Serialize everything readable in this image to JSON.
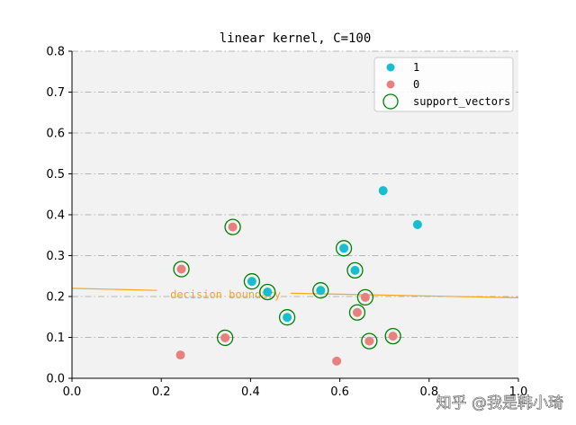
{
  "chart_data": {
    "type": "scatter",
    "title": "linear kernel, C=100",
    "xlabel": "",
    "ylabel": "",
    "xlim": [
      0.0,
      1.0
    ],
    "ylim": [
      0.0,
      0.8
    ],
    "xticks": [
      "0.0",
      "0.2",
      "0.4",
      "0.6",
      "0.8",
      "1.0"
    ],
    "yticks": [
      "0.0",
      "0.1",
      "0.2",
      "0.3",
      "0.4",
      "0.5",
      "0.6",
      "0.7",
      "0.8"
    ],
    "grid": "horizontal dash-dot",
    "legend_position": "top-right",
    "series": [
      {
        "name": "1",
        "color": "#17becf",
        "points": [
          {
            "x": 0.403,
            "y": 0.237
          },
          {
            "x": 0.438,
            "y": 0.211
          },
          {
            "x": 0.482,
            "y": 0.149
          },
          {
            "x": 0.557,
            "y": 0.215
          },
          {
            "x": 0.609,
            "y": 0.318
          },
          {
            "x": 0.634,
            "y": 0.264
          },
          {
            "x": 0.697,
            "y": 0.459
          },
          {
            "x": 0.774,
            "y": 0.376
          }
        ]
      },
      {
        "name": "0",
        "color": "#e88080",
        "points": [
          {
            "x": 0.243,
            "y": 0.057
          },
          {
            "x": 0.245,
            "y": 0.267
          },
          {
            "x": 0.343,
            "y": 0.099
          },
          {
            "x": 0.36,
            "y": 0.37
          },
          {
            "x": 0.593,
            "y": 0.042
          },
          {
            "x": 0.639,
            "y": 0.161
          },
          {
            "x": 0.657,
            "y": 0.198
          },
          {
            "x": 0.666,
            "y": 0.091
          },
          {
            "x": 0.719,
            "y": 0.103
          }
        ]
      },
      {
        "name": "support_vectors",
        "color": "#008000",
        "points": [
          {
            "x": 0.403,
            "y": 0.237
          },
          {
            "x": 0.438,
            "y": 0.211
          },
          {
            "x": 0.482,
            "y": 0.149
          },
          {
            "x": 0.557,
            "y": 0.215
          },
          {
            "x": 0.609,
            "y": 0.318
          },
          {
            "x": 0.634,
            "y": 0.264
          },
          {
            "x": 0.245,
            "y": 0.267
          },
          {
            "x": 0.343,
            "y": 0.099
          },
          {
            "x": 0.36,
            "y": 0.37
          },
          {
            "x": 0.639,
            "y": 0.161
          },
          {
            "x": 0.657,
            "y": 0.198
          },
          {
            "x": 0.666,
            "y": 0.091
          },
          {
            "x": 0.719,
            "y": 0.103
          }
        ]
      }
    ],
    "decision_boundary": {
      "label": "decision boundary",
      "color": "#f5a623",
      "segments": [
        [
          {
            "x": 0.0,
            "y": 0.22
          },
          {
            "x": 0.19,
            "y": 0.215
          }
        ],
        [
          {
            "x": 0.49,
            "y": 0.208
          },
          {
            "x": 1.0,
            "y": 0.197
          }
        ]
      ]
    }
  },
  "watermark": "知乎 @我是韩小琦"
}
